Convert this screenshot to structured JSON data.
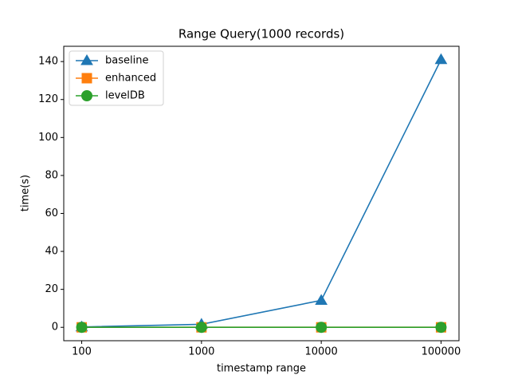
{
  "chart_data": {
    "type": "line",
    "title": "Range Query(1000 records)",
    "x_label": "timestamp range",
    "y_label": "time(s)",
    "categories": [
      "100",
      "1000",
      "10000",
      "100000"
    ],
    "series": [
      {
        "name": "baseline",
        "color": "#1f77b4",
        "marker": "triangle",
        "values": [
          0.2,
          1.6,
          14.2,
          141
        ]
      },
      {
        "name": "enhanced",
        "color": "#ff7f0e",
        "marker": "square",
        "values": [
          0,
          0,
          0,
          0
        ]
      },
      {
        "name": "levelDB",
        "color": "#2ca02c",
        "marker": "circle",
        "values": [
          0,
          0,
          0,
          0
        ]
      }
    ],
    "ylim": [
      -7.05,
      148.05
    ],
    "yticks": [
      0,
      20,
      40,
      60,
      80,
      100,
      120,
      140
    ],
    "legend": "upper left",
    "grid": false
  }
}
